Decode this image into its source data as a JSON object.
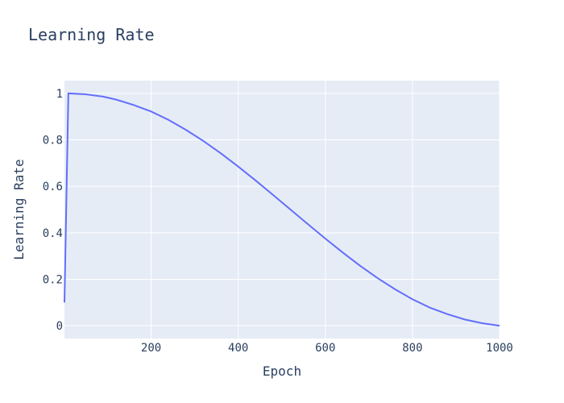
{
  "chart_data": {
    "type": "line",
    "title": "Learning Rate",
    "xlabel": "Epoch",
    "ylabel": "Learning Rate",
    "xlim": [
      1,
      1000
    ],
    "ylim": [
      -0.055,
      1.055
    ],
    "grid": true,
    "legend": "none",
    "x_ticks": [
      200,
      400,
      600,
      800,
      1000
    ],
    "y_ticks": [
      0,
      0.2,
      0.4,
      0.6,
      0.8,
      1
    ],
    "y_tick_labels": [
      "0",
      "0.2",
      "0.4",
      "0.6",
      "0.8",
      "1"
    ],
    "series": [
      {
        "x": [
          1,
          10,
          50,
          90,
          120,
          160,
          200,
          240,
          280,
          320,
          360,
          400,
          440,
          480,
          520,
          560,
          600,
          640,
          680,
          720,
          760,
          800,
          840,
          880,
          920,
          960,
          1000
        ],
        "y": [
          0.1,
          1.0,
          0.996,
          0.986,
          0.973,
          0.95,
          0.922,
          0.886,
          0.843,
          0.795,
          0.742,
          0.685,
          0.625,
          0.563,
          0.5,
          0.437,
          0.375,
          0.315,
          0.258,
          0.205,
          0.157,
          0.114,
          0.078,
          0.05,
          0.027,
          0.011,
          0.0
        ]
      }
    ],
    "colors": {
      "line": "#636efa",
      "plot_bg": "#e5ecf6",
      "grid": "#ffffff",
      "text": "#2a3f5f"
    }
  }
}
